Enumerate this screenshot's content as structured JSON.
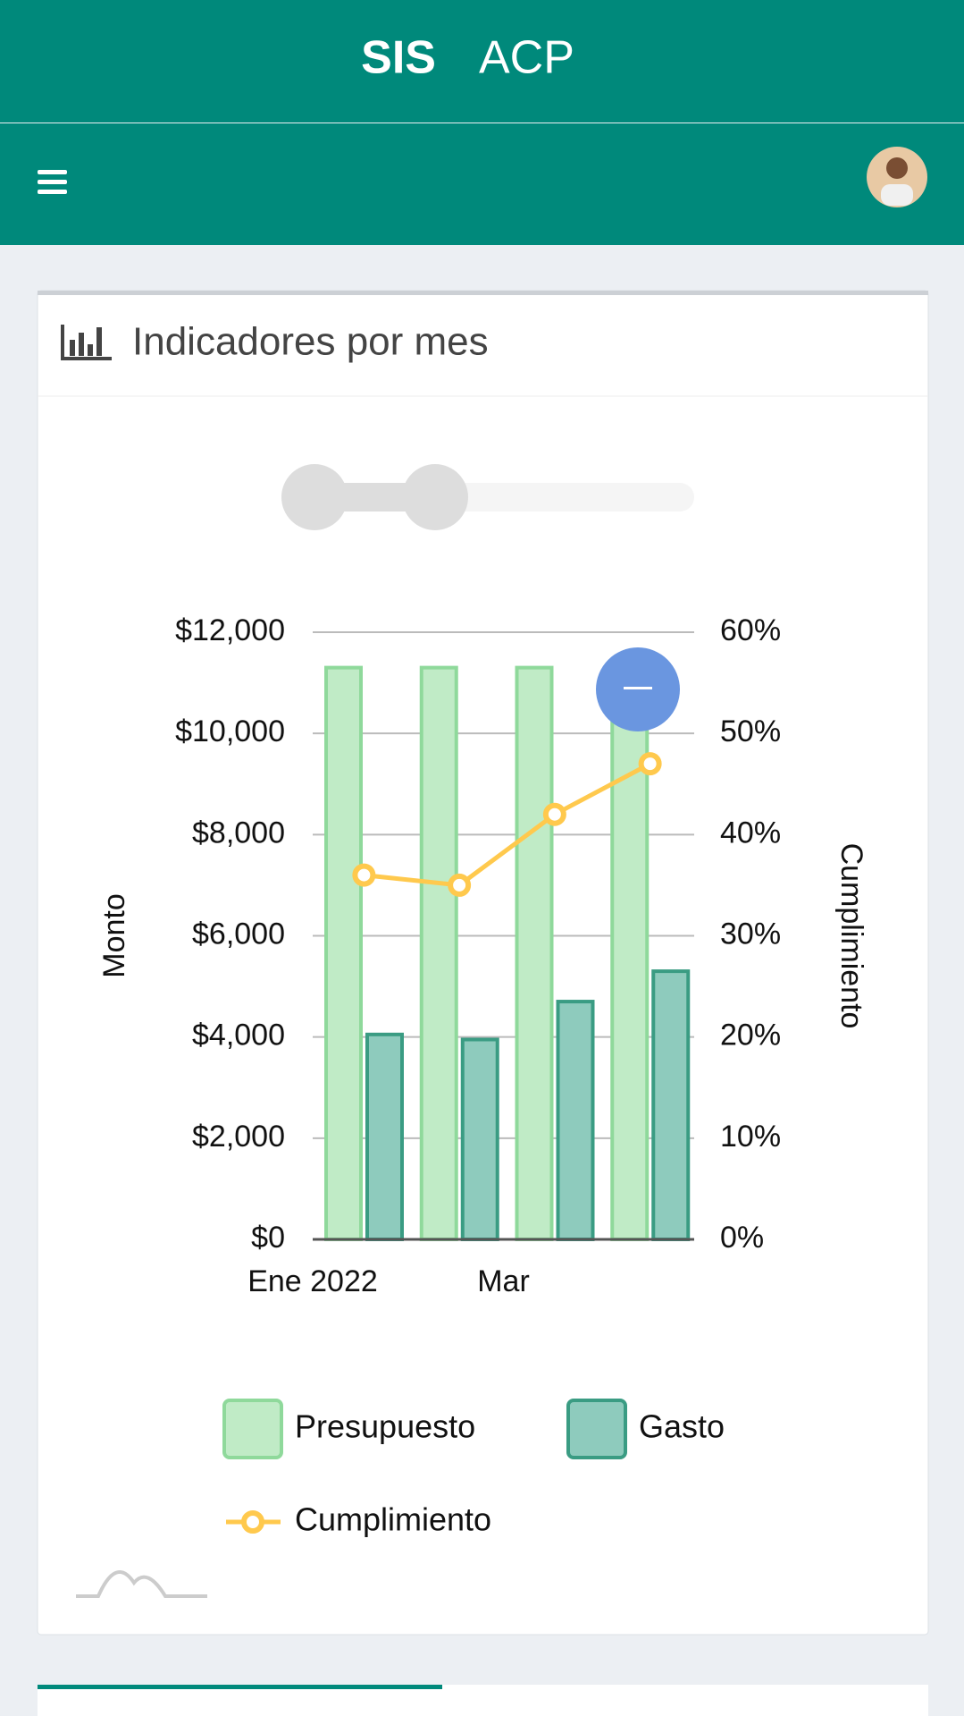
{
  "header": {
    "brand": "SIS",
    "name": "ACP"
  },
  "card": {
    "title": "Indicadores por mes"
  },
  "chart_data": {
    "type": "bar",
    "categories": [
      "Ene 2022",
      null,
      "Mar",
      null
    ],
    "series": [
      {
        "name": "Presupuesto",
        "type": "bar",
        "color": "#c0ebc6",
        "stroke": "#8fd99b",
        "values": [
          11300,
          11300,
          11300,
          11300
        ]
      },
      {
        "name": "Gasto",
        "type": "bar",
        "color": "#8ecbbd",
        "stroke": "#3a9c83",
        "values": [
          4050,
          3950,
          4700,
          5300
        ]
      },
      {
        "name": "Cumplimiento",
        "type": "line",
        "axis": "y2",
        "color": "#ffc94d",
        "values": [
          36,
          35,
          42,
          47
        ]
      }
    ],
    "y_label": "Monto",
    "y2_label": "Cumplimiento",
    "ylim": [
      0,
      12000
    ],
    "yticks": [
      {
        "value": 0,
        "label": "$0"
      },
      {
        "value": 2000,
        "label": "$2,000"
      },
      {
        "value": 4000,
        "label": "$4,000"
      },
      {
        "value": 6000,
        "label": "$6,000"
      },
      {
        "value": 8000,
        "label": "$8,000"
      },
      {
        "value": 10000,
        "label": "$10,000"
      },
      {
        "value": 12000,
        "label": "$12,000"
      }
    ],
    "y2lim": [
      0,
      60
    ],
    "y2ticks": [
      {
        "value": 0,
        "label": "0%"
      },
      {
        "value": 10,
        "label": "10%"
      },
      {
        "value": 20,
        "label": "20%"
      },
      {
        "value": 30,
        "label": "30%"
      },
      {
        "value": 40,
        "label": "40%"
      },
      {
        "value": 50,
        "label": "50%"
      },
      {
        "value": 60,
        "label": "60%"
      }
    ],
    "grid": true
  }
}
